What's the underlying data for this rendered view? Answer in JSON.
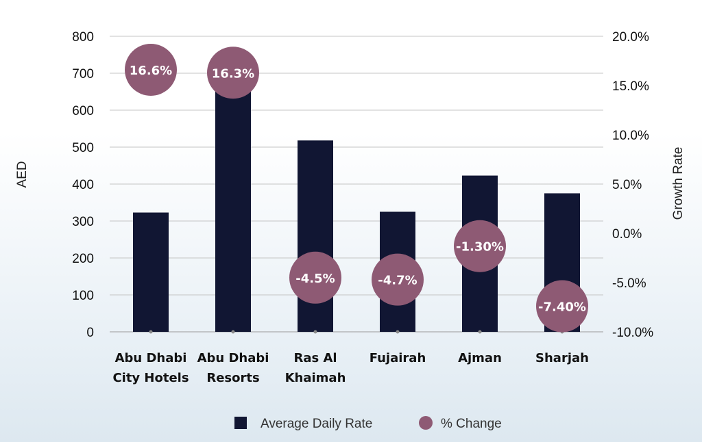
{
  "chart_data": {
    "type": "bar",
    "categories": [
      [
        "Abu Dhabi",
        "City Hotels"
      ],
      [
        "Abu Dhabi",
        "Resorts"
      ],
      [
        "Ras Al",
        "Khaimah"
      ],
      [
        "Fujairah"
      ],
      [
        "Ajman"
      ],
      [
        "Sharjah"
      ]
    ],
    "series": [
      {
        "name": "Average Daily Rate",
        "kind": "bar",
        "axis": "left",
        "color": "#111633",
        "values": [
          323,
          700,
          518,
          325,
          423,
          375
        ]
      },
      {
        "name": "% Change",
        "kind": "bubble",
        "axis": "right",
        "color": "#8e5a74",
        "values": [
          16.6,
          16.3,
          -4.5,
          -4.7,
          -1.3,
          -7.4
        ],
        "labels": [
          "16.6%",
          "16.3%",
          "-4.5%",
          "-4.7%",
          "-1.30%",
          "-7.40%"
        ]
      }
    ],
    "ylabel": "AED",
    "y2label": "Growth Rate",
    "ylim": [
      0,
      800
    ],
    "yticks": [
      "0",
      "100",
      "200",
      "300",
      "400",
      "500",
      "600",
      "700",
      "800"
    ],
    "y2lim": [
      -10,
      20
    ],
    "y2ticks": [
      "-10.0%",
      "-5.0%",
      "0.0%",
      "5.0%",
      "10.0%",
      "15.0%",
      "20.0%"
    ],
    "grid": true,
    "legend_position": "bottom-center"
  }
}
